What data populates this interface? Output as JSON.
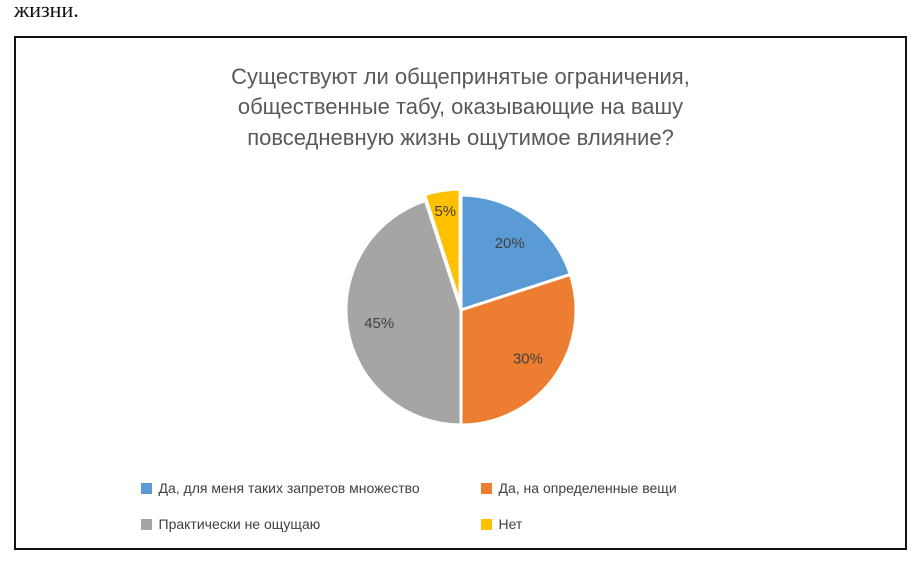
{
  "page": {
    "fragment_text": "жизни."
  },
  "chart_data": {
    "type": "pie",
    "title": "Существуют ли общепринятые ограничения, общественные табу, оказывающие на вашу повседневную жизнь ощутимое влияние?",
    "categories": [
      "Да, для меня таких запретов множество",
      "Да, на определенные вещи",
      "Практически не ощущаю",
      "Нет"
    ],
    "values": [
      20,
      30,
      45,
      5
    ],
    "data_labels": [
      "20%",
      "30%",
      "45%",
      "5%"
    ],
    "colors": [
      "#5B9BD5",
      "#ED7D31",
      "#A5A5A5",
      "#FFC000"
    ],
    "start_angle_deg": 0,
    "direction": "clockwise",
    "legend_position": "bottom",
    "title_color": "#595959",
    "label_color": "#404040",
    "slice_border_color": "#ffffff"
  }
}
